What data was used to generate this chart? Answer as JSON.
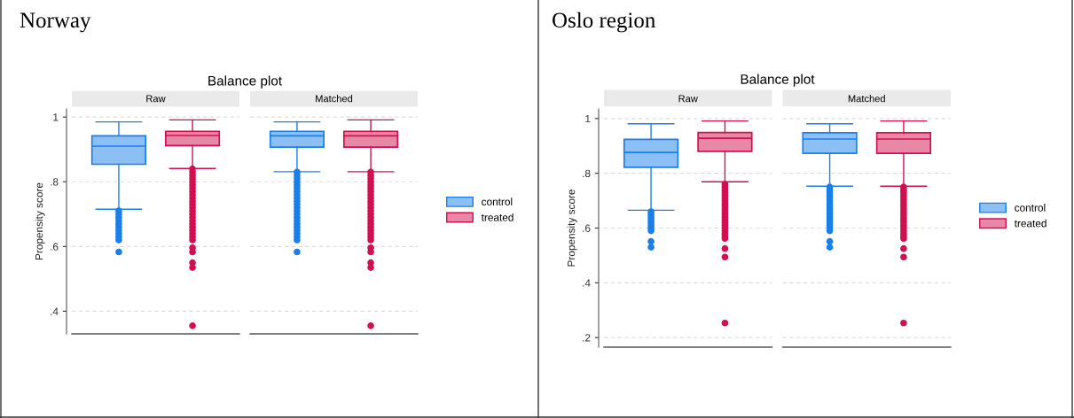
{
  "chart_data": [
    {
      "type": "box",
      "title": "Balance plot",
      "ylabel": "Propensity score",
      "annotations": [
        "Norway"
      ],
      "categories": [
        "Raw",
        "Matched"
      ],
      "ylim": [
        0.33,
        1.025
      ],
      "yticks": [
        {
          "value": 0.4,
          "label": ".4"
        },
        {
          "value": 0.6,
          "label": ".6"
        },
        {
          "value": 0.8,
          "label": ".8"
        },
        1
      ],
      "grid": "y",
      "legend": "right",
      "series": [
        {
          "name": "control",
          "color": "#1a7fe8",
          "boxes": [
            {
              "low": 0.715,
              "q1": 0.854,
              "median": 0.91,
              "q3": 0.942,
              "high": 0.985,
              "outliers": [
                0.71,
                0.7,
                0.69,
                0.68,
                0.67,
                0.66,
                0.65,
                0.64,
                0.63,
                0.62,
                0.583
              ]
            },
            {
              "low": 0.831,
              "q1": 0.907,
              "median": 0.942,
              "q3": 0.956,
              "high": 0.985,
              "outliers": [
                0.83,
                0.82,
                0.81,
                0.8,
                0.79,
                0.78,
                0.77,
                0.76,
                0.75,
                0.74,
                0.73,
                0.72,
                0.71,
                0.7,
                0.69,
                0.68,
                0.67,
                0.66,
                0.65,
                0.64,
                0.63,
                0.62,
                0.583
              ]
            }
          ]
        },
        {
          "name": "treated",
          "color": "#d0104f",
          "boxes": [
            {
              "low": 0.841,
              "q1": 0.912,
              "median": 0.943,
              "q3": 0.956,
              "high": 0.991,
              "outliers": [
                0.84,
                0.83,
                0.82,
                0.81,
                0.8,
                0.79,
                0.78,
                0.77,
                0.76,
                0.75,
                0.74,
                0.73,
                0.72,
                0.71,
                0.7,
                0.69,
                0.68,
                0.67,
                0.66,
                0.65,
                0.64,
                0.63,
                0.62,
                0.596,
                0.583,
                0.55,
                0.535,
                0.355
              ]
            },
            {
              "low": 0.831,
              "q1": 0.907,
              "median": 0.942,
              "q3": 0.956,
              "high": 0.991,
              "outliers": [
                0.83,
                0.82,
                0.81,
                0.8,
                0.79,
                0.78,
                0.77,
                0.76,
                0.75,
                0.74,
                0.73,
                0.72,
                0.71,
                0.7,
                0.69,
                0.68,
                0.67,
                0.66,
                0.65,
                0.64,
                0.63,
                0.62,
                0.596,
                0.583,
                0.55,
                0.535,
                0.355
              ]
            }
          ]
        }
      ]
    },
    {
      "type": "box",
      "title": "Balance plot",
      "ylabel": "Propensity score",
      "annotations": [
        "Oslo region"
      ],
      "categories": [
        "Raw",
        "Matched"
      ],
      "ylim": [
        0.165,
        1.035
      ],
      "yticks": [
        {
          "value": 0.2,
          "label": ".2"
        },
        {
          "value": 0.4,
          "label": ".4"
        },
        {
          "value": 0.6,
          "label": ".6"
        },
        {
          "value": 0.8,
          "label": ".8"
        },
        1
      ],
      "grid": "y",
      "legend": "right",
      "series": [
        {
          "name": "control",
          "color": "#1a7fe8",
          "boxes": [
            {
              "low": 0.665,
              "q1": 0.822,
              "median": 0.876,
              "q3": 0.924,
              "high": 0.981,
              "outliers": [
                0.66,
                0.65,
                0.64,
                0.63,
                0.62,
                0.61,
                0.6,
                0.59,
                0.551,
                0.53
              ]
            },
            {
              "low": 0.753,
              "q1": 0.873,
              "median": 0.925,
              "q3": 0.948,
              "high": 0.981,
              "outliers": [
                0.75,
                0.74,
                0.73,
                0.72,
                0.71,
                0.7,
                0.69,
                0.68,
                0.67,
                0.66,
                0.65,
                0.64,
                0.63,
                0.62,
                0.61,
                0.6,
                0.59,
                0.551,
                0.53
              ]
            }
          ]
        },
        {
          "name": "treated",
          "color": "#d0104f",
          "boxes": [
            {
              "low": 0.769,
              "q1": 0.88,
              "median": 0.928,
              "q3": 0.949,
              "high": 0.991,
              "outliers": [
                0.76,
                0.75,
                0.74,
                0.73,
                0.72,
                0.71,
                0.7,
                0.69,
                0.68,
                0.67,
                0.66,
                0.65,
                0.64,
                0.63,
                0.62,
                0.61,
                0.6,
                0.59,
                0.58,
                0.57,
                0.562,
                0.525,
                0.494,
                0.253
              ]
            },
            {
              "low": 0.753,
              "q1": 0.873,
              "median": 0.925,
              "q3": 0.948,
              "high": 0.991,
              "outliers": [
                0.75,
                0.74,
                0.73,
                0.72,
                0.71,
                0.7,
                0.69,
                0.68,
                0.67,
                0.66,
                0.65,
                0.64,
                0.63,
                0.62,
                0.61,
                0.6,
                0.59,
                0.58,
                0.57,
                0.562,
                0.525,
                0.494,
                0.253
              ]
            }
          ]
        }
      ]
    }
  ]
}
